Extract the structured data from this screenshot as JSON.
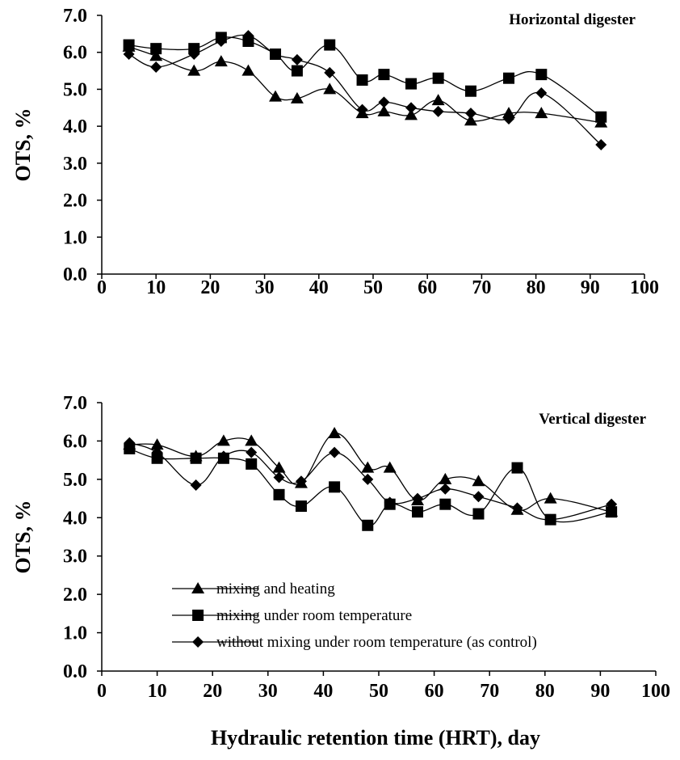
{
  "chart_data": [
    {
      "type": "line",
      "title": "Horizontal digester",
      "ylabel": "OTS, %",
      "xlabel": "",
      "xlim": [
        0,
        100
      ],
      "ylim": [
        0,
        7
      ],
      "x_ticks": [
        "0",
        "10",
        "20",
        "30",
        "40",
        "50",
        "60",
        "70",
        "80",
        "90",
        "100"
      ],
      "y_ticks": [
        "0.0",
        "1.0",
        "2.0",
        "3.0",
        "4.0",
        "5.0",
        "6.0",
        "7.0"
      ],
      "smooth": true,
      "series": [
        {
          "marker": "triangle",
          "x": [
            5,
            10,
            17,
            22,
            27,
            32,
            36,
            42,
            48,
            52,
            57,
            62,
            68,
            75,
            81,
            92
          ],
          "y": [
            6.15,
            5.9,
            5.5,
            5.75,
            5.5,
            4.8,
            4.75,
            5.0,
            4.35,
            4.4,
            4.3,
            4.7,
            4.15,
            4.35,
            4.35,
            4.1
          ]
        },
        {
          "marker": "square",
          "x": [
            5,
            10,
            17,
            22,
            27,
            32,
            36,
            42,
            48,
            52,
            57,
            62,
            68,
            75,
            81,
            92
          ],
          "y": [
            6.2,
            6.1,
            6.1,
            6.4,
            6.3,
            5.95,
            5.5,
            6.2,
            5.25,
            5.4,
            5.15,
            5.3,
            4.95,
            5.3,
            5.4,
            4.25
          ]
        },
        {
          "marker": "diamond",
          "x": [
            5,
            10,
            17,
            22,
            27,
            32,
            36,
            42,
            48,
            52,
            57,
            62,
            68,
            75,
            81,
            92
          ],
          "y": [
            5.95,
            5.6,
            5.95,
            6.3,
            6.45,
            5.95,
            5.8,
            5.45,
            4.45,
            4.65,
            4.5,
            4.4,
            4.35,
            4.2,
            4.9,
            3.5
          ]
        }
      ]
    },
    {
      "type": "line",
      "title": "Vertical digester",
      "ylabel": "OTS, %",
      "xlabel": "Hydraulic retention time (HRT), day",
      "xlim": [
        0,
        100
      ],
      "ylim": [
        0,
        7
      ],
      "x_ticks": [
        "0",
        "10",
        "20",
        "30",
        "40",
        "50",
        "60",
        "70",
        "80",
        "90",
        "100"
      ],
      "y_ticks": [
        "0.0",
        "1.0",
        "2.0",
        "3.0",
        "4.0",
        "5.0",
        "6.0",
        "7.0"
      ],
      "smooth": true,
      "legend": "bottom-left",
      "series": [
        {
          "name": "mixing and heating",
          "marker": "triangle",
          "x": [
            5,
            10,
            17,
            22,
            27,
            32,
            36,
            42,
            48,
            52,
            57,
            62,
            68,
            75,
            81,
            92
          ],
          "y": [
            5.9,
            5.9,
            5.6,
            6.0,
            6.0,
            5.3,
            4.9,
            6.2,
            5.3,
            5.3,
            4.45,
            5.0,
            4.95,
            4.2,
            4.5,
            4.15
          ]
        },
        {
          "name": "mixing under room temperature",
          "marker": "square",
          "x": [
            5,
            10,
            17,
            22,
            27,
            32,
            36,
            42,
            48,
            52,
            57,
            62,
            68,
            75,
            81,
            92
          ],
          "y": [
            5.8,
            5.55,
            5.55,
            5.55,
            5.4,
            4.6,
            4.3,
            4.8,
            3.8,
            4.35,
            4.15,
            4.35,
            4.1,
            5.3,
            3.95,
            4.15
          ]
        },
        {
          "name": "without mixing under room temperature (as control)",
          "marker": "diamond",
          "x": [
            5,
            10,
            17,
            22,
            27,
            32,
            36,
            42,
            48,
            52,
            57,
            62,
            68,
            75,
            81,
            92
          ],
          "y": [
            5.95,
            5.7,
            4.85,
            5.6,
            5.7,
            5.05,
            4.95,
            5.7,
            5.0,
            4.4,
            4.5,
            4.75,
            4.55,
            4.25,
            3.95,
            4.35
          ]
        }
      ]
    }
  ]
}
